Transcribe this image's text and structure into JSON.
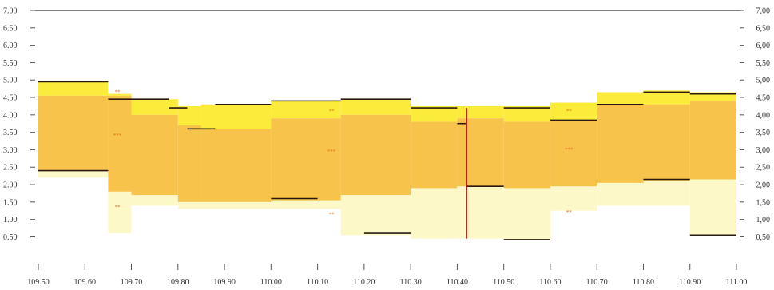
{
  "chart_data": {
    "type": "area",
    "title": "",
    "xlabel": "",
    "ylabel": "",
    "xlim": [
      109.5,
      111.0
    ],
    "ylim": [
      0.35,
      7.0
    ],
    "grid": false,
    "x_ticks": [
      "109.50",
      "109.60",
      "109.70",
      "109.80",
      "109.90",
      "110.00",
      "110.10",
      "110.20",
      "110.30",
      "110.40",
      "110.50",
      "110.60",
      "110.70",
      "110.80",
      "110.90",
      "111.00"
    ],
    "y_ticks_left": [
      "0.50",
      "1.00",
      "1.50",
      "2.00",
      "2.50",
      "3.00",
      "3.50",
      "4.00",
      "4.50",
      "5.00",
      "5.50",
      "6.00",
      "6.50",
      "7.00"
    ],
    "y_ticks_right": [
      "0,50",
      "1,00",
      "1,50",
      "2,00",
      "2,50",
      "3,00",
      "3,50",
      "4,00",
      "4,50",
      "5,00",
      "5,50",
      "6,00",
      "6,50",
      "7,00"
    ],
    "reference_line": 7.0,
    "segments": [
      {
        "x0": 109.5,
        "x1": 109.65,
        "upper": 4.95,
        "q3": 4.55,
        "q1": 2.4,
        "lower": 2.2
      },
      {
        "x0": 109.65,
        "x1": 109.7,
        "upper": 4.6,
        "q3": 4.55,
        "q1": 1.8,
        "lower": 0.6
      },
      {
        "x0": 109.7,
        "x1": 109.8,
        "upper": 4.45,
        "q3": 4.0,
        "q1": 1.7,
        "lower": 1.4
      },
      {
        "x0": 109.8,
        "x1": 109.85,
        "upper": 4.25,
        "q3": 3.7,
        "q1": 1.5,
        "lower": 1.3
      },
      {
        "x0": 109.85,
        "x1": 110.0,
        "upper": 4.3,
        "q3": 3.6,
        "q1": 1.5,
        "lower": 1.3
      },
      {
        "x0": 110.0,
        "x1": 110.15,
        "upper": 4.4,
        "q3": 3.9,
        "q1": 1.55,
        "lower": 1.3
      },
      {
        "x0": 110.15,
        "x1": 110.3,
        "upper": 4.45,
        "q3": 4.0,
        "q1": 1.7,
        "lower": 0.55
      },
      {
        "x0": 110.3,
        "x1": 110.4,
        "upper": 4.25,
        "q3": 3.8,
        "q1": 1.9,
        "lower": 0.45
      },
      {
        "x0": 110.4,
        "x1": 110.5,
        "upper": 4.25,
        "q3": 3.9,
        "q1": 1.95,
        "lower": 0.45
      },
      {
        "x0": 110.5,
        "x1": 110.6,
        "upper": 4.25,
        "q3": 3.8,
        "q1": 1.9,
        "lower": 0.4
      },
      {
        "x0": 110.6,
        "x1": 110.7,
        "upper": 4.35,
        "q3": 3.85,
        "q1": 1.95,
        "lower": 1.25
      },
      {
        "x0": 110.7,
        "x1": 110.8,
        "upper": 4.65,
        "q3": 4.3,
        "q1": 2.05,
        "lower": 1.4
      },
      {
        "x0": 110.8,
        "x1": 110.9,
        "upper": 4.7,
        "q3": 4.3,
        "q1": 2.1,
        "lower": 1.4
      },
      {
        "x0": 110.9,
        "x1": 111.0,
        "upper": 4.65,
        "q3": 4.4,
        "q1": 2.15,
        "lower": 0.55
      }
    ],
    "step_lines": [
      {
        "x0": 109.5,
        "x1": 109.65,
        "y": 2.4
      },
      {
        "x0": 109.5,
        "x1": 109.65,
        "y": 4.95
      },
      {
        "x0": 109.65,
        "x1": 109.78,
        "y": 4.45
      },
      {
        "x0": 109.78,
        "x1": 109.82,
        "y": 4.2
      },
      {
        "x0": 109.82,
        "x1": 109.88,
        "y": 3.6
      },
      {
        "x0": 109.88,
        "x1": 110.0,
        "y": 4.3
      },
      {
        "x0": 110.0,
        "x1": 110.1,
        "y": 1.6
      },
      {
        "x0": 110.0,
        "x1": 110.15,
        "y": 4.4
      },
      {
        "x0": 110.15,
        "x1": 110.3,
        "y": 4.45
      },
      {
        "x0": 110.2,
        "x1": 110.3,
        "y": 0.6
      },
      {
        "x0": 110.3,
        "x1": 110.4,
        "y": 4.2
      },
      {
        "x0": 110.4,
        "x1": 110.42,
        "y": 3.75
      },
      {
        "x0": 110.42,
        "x1": 110.5,
        "y": 1.95
      },
      {
        "x0": 110.5,
        "x1": 110.6,
        "y": 4.2
      },
      {
        "x0": 110.5,
        "x1": 110.6,
        "y": 0.42
      },
      {
        "x0": 110.6,
        "x1": 110.7,
        "y": 3.85
      },
      {
        "x0": 110.7,
        "x1": 110.8,
        "y": 4.3
      },
      {
        "x0": 110.8,
        "x1": 110.9,
        "y": 4.65
      },
      {
        "x0": 110.8,
        "x1": 110.9,
        "y": 2.15
      },
      {
        "x0": 110.9,
        "x1": 111.0,
        "y": 4.6
      },
      {
        "x0": 110.9,
        "x1": 111.0,
        "y": 0.55
      }
    ],
    "spikes": [
      {
        "x": 110.42,
        "y0": 0.45,
        "y1": 4.2
      }
    ],
    "annotations": [
      {
        "x": 109.67,
        "y": 4.6,
        "text": "**"
      },
      {
        "x": 109.67,
        "y": 3.35,
        "text": "***"
      },
      {
        "x": 109.67,
        "y": 1.3,
        "text": "**"
      },
      {
        "x": 110.13,
        "y": 4.05,
        "text": "**"
      },
      {
        "x": 110.13,
        "y": 2.9,
        "text": "***"
      },
      {
        "x": 110.13,
        "y": 1.1,
        "text": "**"
      },
      {
        "x": 110.64,
        "y": 4.05,
        "text": "**"
      },
      {
        "x": 110.64,
        "y": 2.95,
        "text": "***"
      },
      {
        "x": 110.64,
        "y": 1.15,
        "text": "**"
      }
    ],
    "colors": {
      "outer_band": "#fbec3c",
      "inner_band": "#f8c34a",
      "lower_wash": "#fdf8c8",
      "step_line": "#2b1a10",
      "spike": "#c00000",
      "annotation": "#e07020",
      "axis": "#555555"
    }
  }
}
